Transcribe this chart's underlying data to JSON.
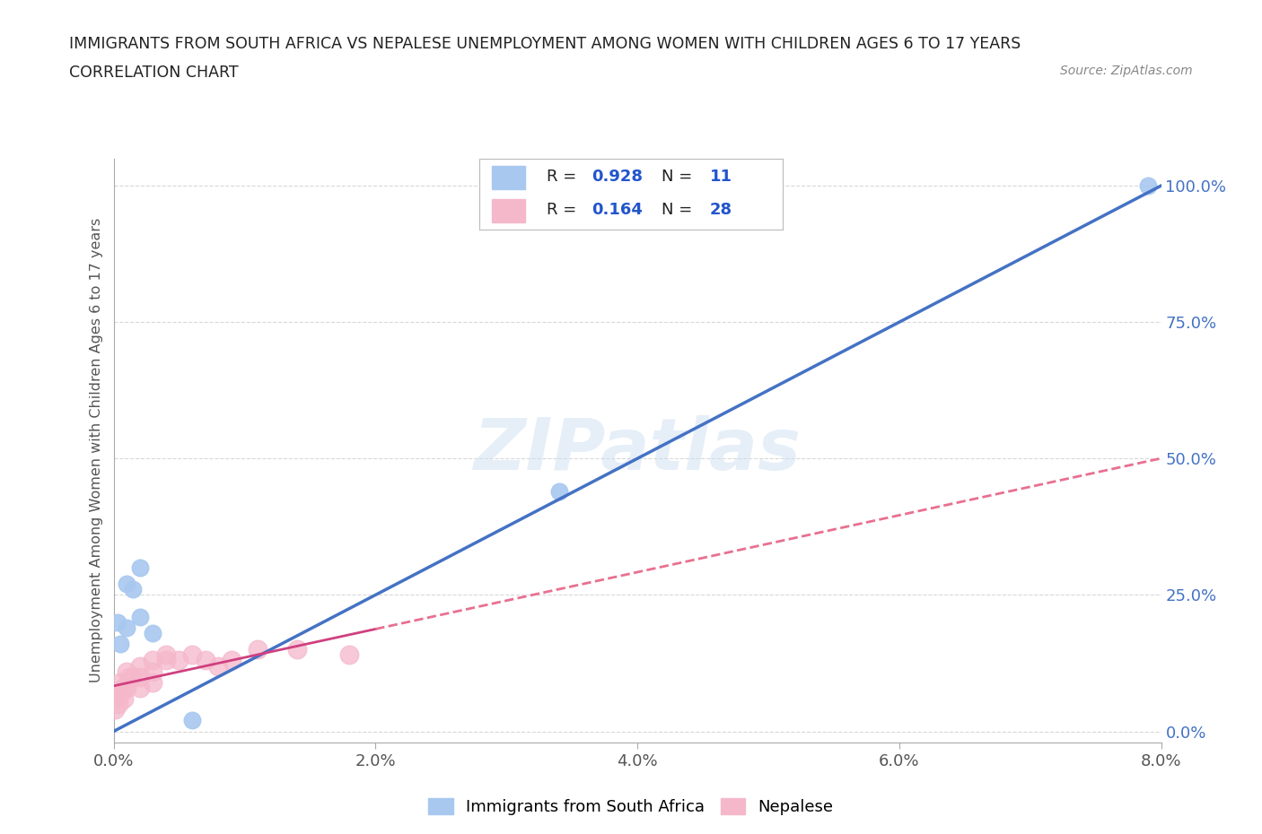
{
  "title": "IMMIGRANTS FROM SOUTH AFRICA VS NEPALESE UNEMPLOYMENT AMONG WOMEN WITH CHILDREN AGES 6 TO 17 YEARS",
  "subtitle": "CORRELATION CHART",
  "source": "Source: ZipAtlas.com",
  "ylabel_left": "Unemployment Among Women with Children Ages 6 to 17 years",
  "watermark": "ZIPatlas",
  "blue_color": "#a8c8f0",
  "pink_color": "#f5b8cb",
  "blue_line_color": "#4472c4",
  "pink_line_color": "#d04080",
  "pink_line_color_dash": "#e87090",
  "R_blue": "0.928",
  "N_blue": "11",
  "R_pink": "0.164",
  "N_pink": "28",
  "blue_points_x": [
    0.0003,
    0.0005,
    0.001,
    0.001,
    0.0015,
    0.002,
    0.002,
    0.003,
    0.034,
    0.006,
    0.079
  ],
  "blue_points_y": [
    0.2,
    0.16,
    0.27,
    0.19,
    0.26,
    0.3,
    0.21,
    0.18,
    0.44,
    0.02,
    1.0
  ],
  "pink_points_x": [
    0.0001,
    0.0002,
    0.0003,
    0.0004,
    0.0005,
    0.0006,
    0.0007,
    0.0008,
    0.001,
    0.001,
    0.0012,
    0.0015,
    0.002,
    0.002,
    0.002,
    0.003,
    0.003,
    0.003,
    0.004,
    0.004,
    0.005,
    0.006,
    0.007,
    0.008,
    0.009,
    0.011,
    0.014,
    0.018
  ],
  "pink_points_y": [
    0.04,
    0.06,
    0.07,
    0.05,
    0.09,
    0.07,
    0.08,
    0.06,
    0.11,
    0.08,
    0.1,
    0.1,
    0.12,
    0.1,
    0.08,
    0.13,
    0.11,
    0.09,
    0.14,
    0.13,
    0.13,
    0.14,
    0.13,
    0.12,
    0.13,
    0.15,
    0.15,
    0.14
  ],
  "xmin": 0.0,
  "xmax": 0.08,
  "ymin": -0.02,
  "ymax": 1.05,
  "yticks": [
    0.0,
    0.25,
    0.5,
    0.75,
    1.0
  ],
  "ytick_labels": [
    "0.0%",
    "25.0%",
    "50.0%",
    "75.0%",
    "100.0%"
  ],
  "xticks": [
    0.0,
    0.02,
    0.04,
    0.06,
    0.08
  ],
  "xtick_labels": [
    "0.0%",
    "2.0%",
    "4.0%",
    "6.0%",
    "8.0%"
  ],
  "grid_color": "#d8d8d8",
  "background_color": "#ffffff",
  "title_color": "#222222",
  "stat_text_color": "#2255cc",
  "legend_bottom_labels": [
    "Immigrants from South Africa",
    "Nepalese"
  ]
}
